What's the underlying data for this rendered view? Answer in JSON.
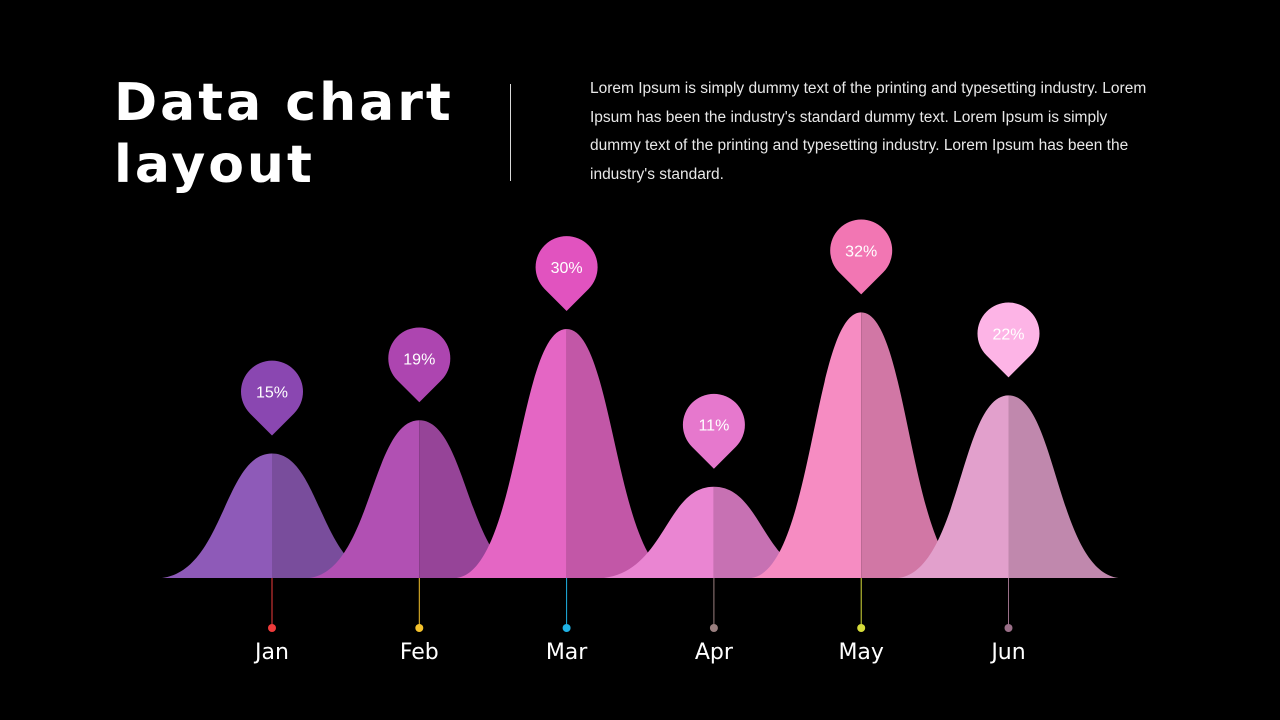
{
  "slide": {
    "title_line1": "Data chart",
    "title_line2": "layout",
    "body": "Lorem Ipsum is simply dummy text of the printing and typesetting industry. Lorem Ipsum has been the industry's standard dummy text. Lorem Ipsum is simply dummy text of the printing and typesetting industry. Lorem Ipsum has been the industry's standard."
  },
  "chart_data": {
    "type": "area",
    "categories": [
      "Jan",
      "Feb",
      "Mar",
      "Apr",
      "May",
      "Jun"
    ],
    "values": [
      15,
      19,
      30,
      11,
      32,
      22
    ],
    "value_suffix": "%",
    "colors": [
      "#8e5ab8",
      "#b150b3",
      "#e466c4",
      "#ea85d2",
      "#f68cc2",
      "#e2a0cc"
    ],
    "pin_colors": [
      "#8a47b1",
      "#ad45b0",
      "#e153bf",
      "#e678cd",
      "#f276b3",
      "#fdb4e6"
    ],
    "dot_colors": [
      "#ef3b3b",
      "#f4c22c",
      "#1fb3e6",
      "#9a7f7f",
      "#d6dc3a",
      "#9a6f88"
    ],
    "grid": false,
    "legend": "none"
  }
}
